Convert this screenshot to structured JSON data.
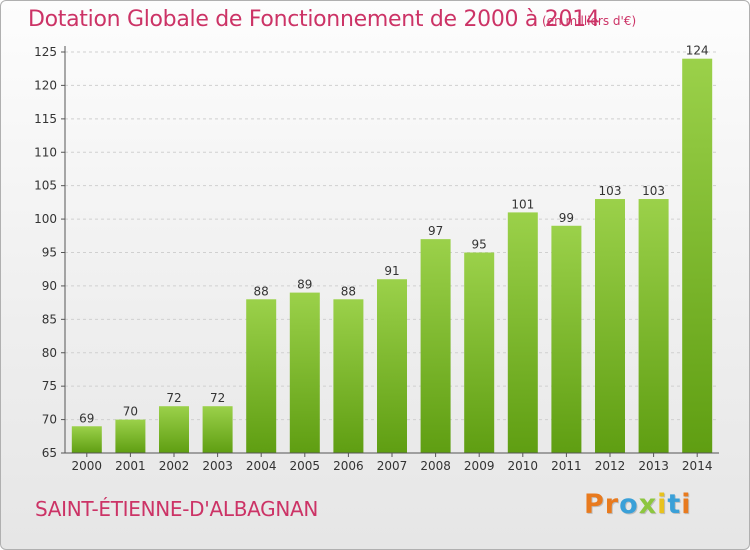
{
  "title": "Dotation Globale de Fonctionnement de 2000 à 2014",
  "unit_note": "(en milliers d'€)",
  "commune": "SAINT-ÉTIENNE-D'ALBAGNAN",
  "logo": {
    "text": "Proxiti",
    "letters": [
      {
        "char": "P",
        "color": "#e87a1e"
      },
      {
        "char": "r",
        "color": "#e87a1e"
      },
      {
        "char": "o",
        "color": "#3aa0d8"
      },
      {
        "char": "x",
        "color": "#8dc63f"
      },
      {
        "char": "i",
        "color": "#e8c21e"
      },
      {
        "char": "t",
        "color": "#3aa0d8"
      },
      {
        "char": "i",
        "color": "#e87a1e"
      }
    ]
  },
  "colors": {
    "accent": "#cc3366",
    "bar_top": "#9bd14a",
    "bar_bottom": "#5f9e12",
    "grid": "#d0d0d0",
    "axis": "#555555"
  },
  "chart_data": {
    "type": "bar",
    "categories": [
      "2000",
      "2001",
      "2002",
      "2003",
      "2004",
      "2005",
      "2006",
      "2007",
      "2008",
      "2009",
      "2010",
      "2011",
      "2012",
      "2013",
      "2014"
    ],
    "values": [
      69,
      70,
      72,
      72,
      88,
      89,
      88,
      91,
      97,
      95,
      101,
      99,
      103,
      103,
      124
    ],
    "ylim": [
      65,
      125
    ],
    "yticks": [
      65,
      70,
      75,
      80,
      85,
      90,
      95,
      100,
      105,
      110,
      115,
      120,
      125
    ],
    "grid": true
  }
}
